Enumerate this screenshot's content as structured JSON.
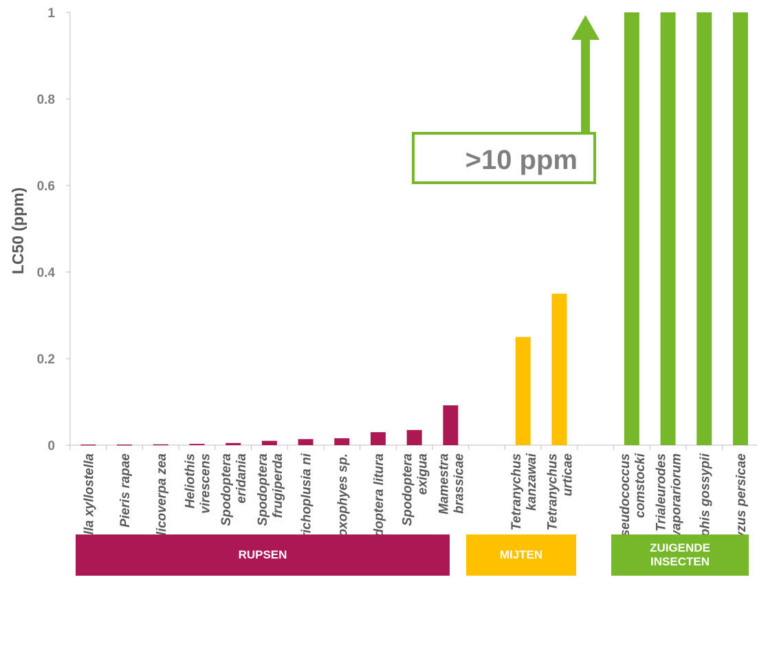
{
  "chart_data": {
    "type": "bar",
    "ylabel": "LC50 (ppm)",
    "ylim": [
      0,
      1
    ],
    "yticks": [
      "0",
      "0.2",
      "0.4",
      "0.6",
      "0.8",
      "1"
    ],
    "grid": false,
    "bars": [
      {
        "lines": [
          "Plutella xyllostella"
        ],
        "value": 0.001,
        "group": "RUPSEN"
      },
      {
        "lines": [
          "Pieris rapae"
        ],
        "value": 0.001,
        "group": "RUPSEN"
      },
      {
        "lines": [
          "Helicoverpa zea"
        ],
        "value": 0.002,
        "group": "RUPSEN"
      },
      {
        "lines": [
          "Heliothis",
          "virescens"
        ],
        "value": 0.003,
        "group": "RUPSEN"
      },
      {
        "lines": [
          "Spodoptera",
          "eridania"
        ],
        "value": 0.005,
        "group": "RUPSEN"
      },
      {
        "lines": [
          "Spodoptera",
          "frugiperda"
        ],
        "value": 0.01,
        "group": "RUPSEN"
      },
      {
        "lines": [
          "Trichoplusia ni"
        ],
        "value": 0.014,
        "group": "RUPSEN"
      },
      {
        "lines": [
          "Adoxophyes sp."
        ],
        "value": 0.016,
        "group": "RUPSEN"
      },
      {
        "lines": [
          "Spodoptera litura"
        ],
        "value": 0.03,
        "group": "RUPSEN"
      },
      {
        "lines": [
          "Spodoptera",
          "exigua"
        ],
        "value": 0.035,
        "group": "RUPSEN"
      },
      {
        "lines": [
          "Mamestra",
          "brassicae"
        ],
        "value": 0.092,
        "group": "RUPSEN"
      },
      {
        "lines": [
          "Tetranychus",
          "kanzawai"
        ],
        "value": 0.25,
        "group": "MIJTEN"
      },
      {
        "lines": [
          "Tetranychus",
          "urticae"
        ],
        "value": 0.35,
        "group": "MIJTEN"
      },
      {
        "lines": [
          "Pseudococcus",
          "comstocki"
        ],
        "value": 1,
        "group": "ZUIGENDE INSECTEN"
      },
      {
        "lines": [
          "Trialeurodes",
          "vaporariorum"
        ],
        "value": 1,
        "group": "ZUIGENDE INSECTEN"
      },
      {
        "lines": [
          "Aphis gossypii"
        ],
        "value": 1,
        "group": "ZUIGENDE INSECTEN"
      },
      {
        "lines": [
          "Myzus persicae"
        ],
        "value": 1,
        "group": "ZUIGENDE INSECTEN"
      }
    ],
    "callout": ">10 ppm",
    "groups": [
      {
        "label": "RUPSEN",
        "color": "#ab1854"
      },
      {
        "label": "MIJTEN",
        "color": "#ffc000"
      },
      {
        "label": "ZUIGENDE INSECTEN",
        "color": "#77b82a"
      }
    ]
  }
}
